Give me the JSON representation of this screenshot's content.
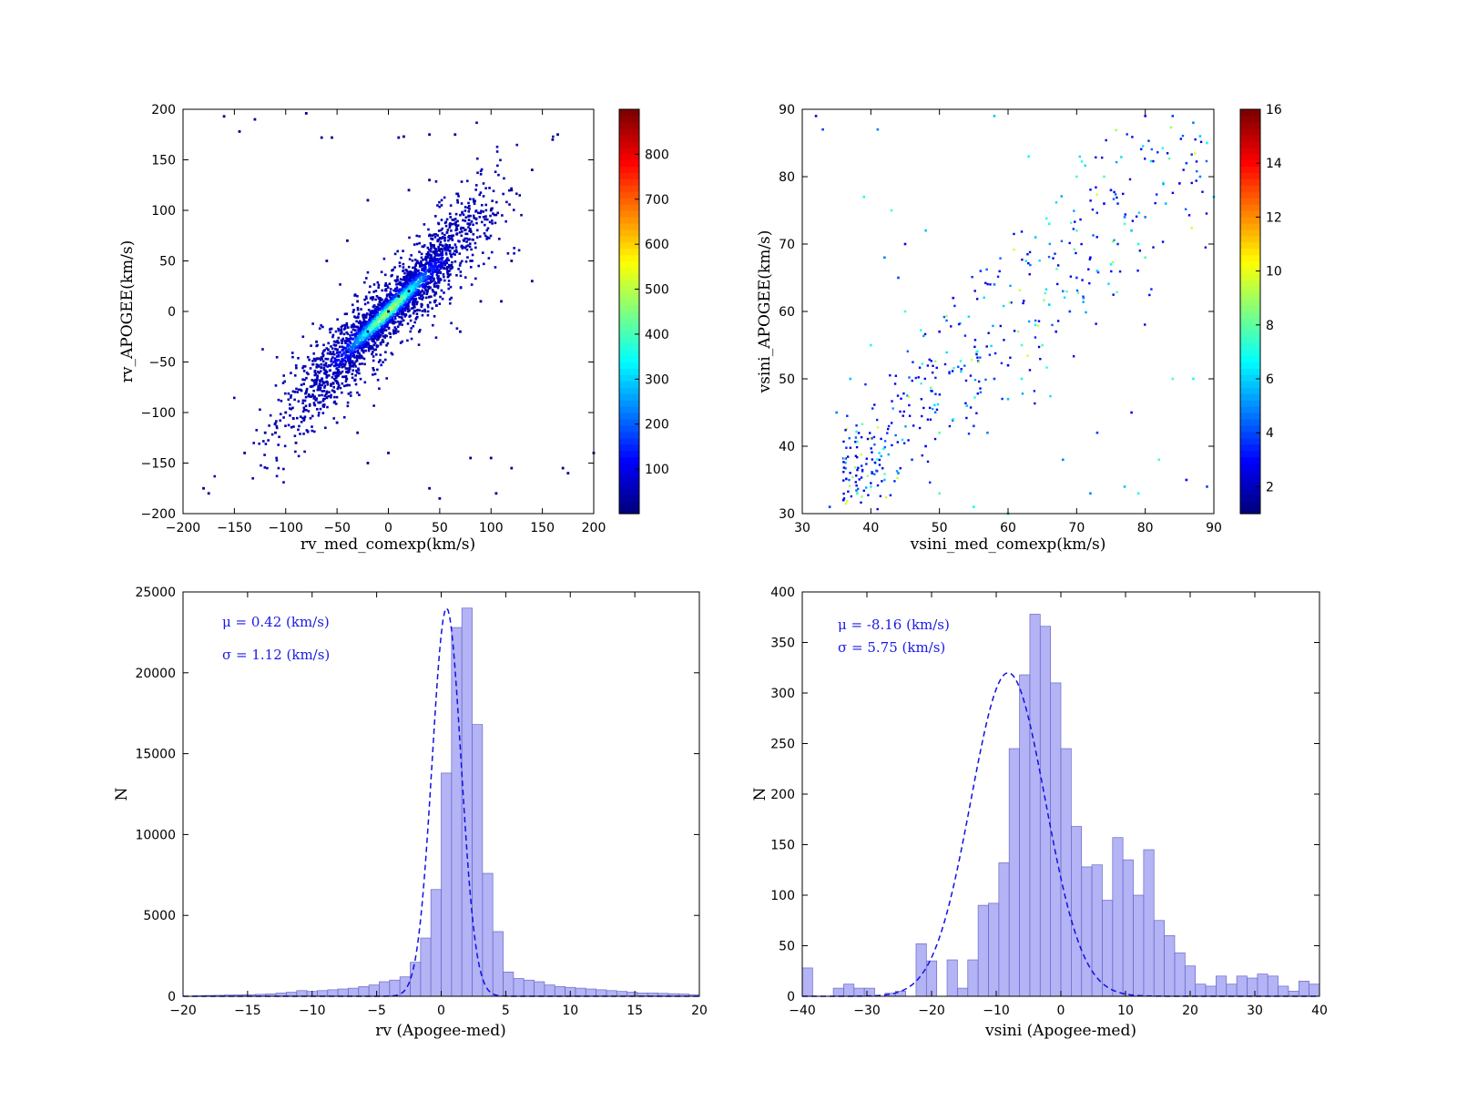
{
  "chart_data": [
    {
      "type": "scatter",
      "subtype": "density-scatter",
      "title": "",
      "xlabel": "rv_med_comexp(km/s)",
      "ylabel": "rv_APOGEE(km/s)",
      "xlim": [
        -200,
        200
      ],
      "ylim": [
        -200,
        200
      ],
      "xticks": [
        -200,
        -150,
        -100,
        -50,
        0,
        50,
        100,
        150,
        200
      ],
      "yticks": [
        -200,
        -150,
        -100,
        -50,
        0,
        50,
        100,
        150,
        200
      ],
      "xtick_labels": [
        "−200",
        "−150",
        "−100",
        "−50",
        "0",
        "50",
        "100",
        "150",
        "200"
      ],
      "ytick_labels": [
        "−200",
        "−150",
        "−100",
        "−50",
        "0",
        "50",
        "100",
        "150",
        "200"
      ],
      "colorbar": {
        "colormap": "jet",
        "range": [
          1,
          900
        ],
        "ticks": [
          100,
          200,
          300,
          400,
          500,
          600,
          700,
          800
        ]
      },
      "trend": "points concentrated along the 1:1 line y = x; density peaks near the origin (up to ~900 counts per cell)",
      "points": [
        [
          -160,
          193
        ],
        [
          -130,
          190
        ],
        [
          -145,
          178
        ],
        [
          -80,
          196
        ],
        [
          -65,
          172
        ],
        [
          -55,
          172
        ],
        [
          10,
          172
        ],
        [
          15,
          173
        ],
        [
          40,
          175
        ],
        [
          65,
          175
        ],
        [
          160,
          170
        ],
        [
          165,
          175
        ],
        [
          -140,
          -140
        ],
        [
          -120,
          -120
        ],
        [
          -100,
          -100
        ],
        [
          -80,
          -80
        ],
        [
          -60,
          -60
        ],
        [
          -40,
          -40
        ],
        [
          -20,
          -20
        ],
        [
          0,
          0
        ],
        [
          20,
          20
        ],
        [
          40,
          40
        ],
        [
          60,
          60
        ],
        [
          80,
          80
        ],
        [
          100,
          100
        ],
        [
          120,
          120
        ],
        [
          140,
          140
        ],
        [
          -60,
          50
        ],
        [
          -40,
          70
        ],
        [
          -20,
          110
        ],
        [
          20,
          120
        ],
        [
          40,
          130
        ],
        [
          -70,
          -30
        ],
        [
          -50,
          -110
        ],
        [
          -30,
          -120
        ],
        [
          0,
          -140
        ],
        [
          70,
          -20
        ],
        [
          90,
          10
        ],
        [
          110,
          10
        ],
        [
          120,
          50
        ],
        [
          140,
          30
        ],
        [
          80,
          -145
        ],
        [
          100,
          -145
        ],
        [
          120,
          -155
        ],
        [
          170,
          -155
        ],
        [
          175,
          -160
        ],
        [
          200,
          -140
        ],
        [
          -180,
          -175
        ],
        [
          -175,
          -180
        ],
        [
          -110,
          -120
        ],
        [
          -90,
          -130
        ],
        [
          -20,
          -150
        ],
        [
          40,
          -175
        ],
        [
          50,
          -185
        ],
        [
          105,
          -180
        ],
        [
          -5,
          -30
        ],
        [
          10,
          15
        ],
        [
          25,
          5
        ],
        [
          -15,
          -5
        ],
        [
          5,
          -10
        ],
        [
          -30,
          10
        ],
        [
          30,
          -20
        ],
        [
          50,
          60
        ],
        [
          -45,
          -55
        ]
      ]
    },
    {
      "type": "scatter",
      "subtype": "density-scatter",
      "title": "",
      "xlabel": "vsini_med_comexp(km/s)",
      "ylabel": "vsini_APOGEE(km/s)",
      "xlim": [
        30,
        90
      ],
      "ylim": [
        30,
        90
      ],
      "xticks": [
        30,
        40,
        50,
        60,
        70,
        80,
        90
      ],
      "yticks": [
        30,
        40,
        50,
        60,
        70,
        80,
        90
      ],
      "colorbar": {
        "colormap": "jet",
        "range": [
          1,
          16
        ],
        "ticks": [
          2,
          4,
          6,
          8,
          10,
          12,
          14,
          16
        ]
      },
      "trend": "sparse points scattered around the 1:1 line, densest at 35-55 km/s",
      "points": [
        [
          32,
          89
        ],
        [
          33,
          87
        ],
        [
          41,
          87
        ],
        [
          58,
          89
        ],
        [
          63,
          83
        ],
        [
          70,
          80
        ],
        [
          80,
          89
        ],
        [
          84,
          89
        ],
        [
          87,
          88
        ],
        [
          88,
          86
        ],
        [
          89,
          85
        ],
        [
          74,
          80
        ],
        [
          75,
          78
        ],
        [
          76,
          76
        ],
        [
          77,
          74
        ],
        [
          78,
          72
        ],
        [
          79,
          70
        ],
        [
          80,
          68
        ],
        [
          72,
          68
        ],
        [
          70,
          65
        ],
        [
          68,
          63
        ],
        [
          66,
          61
        ],
        [
          64,
          58
        ],
        [
          62,
          55
        ],
        [
          60,
          52
        ],
        [
          58,
          50
        ],
        [
          56,
          48
        ],
        [
          54,
          46
        ],
        [
          52,
          44
        ],
        [
          50,
          42
        ],
        [
          48,
          40
        ],
        [
          46,
          38
        ],
        [
          44,
          36
        ],
        [
          42,
          35
        ],
        [
          40,
          34
        ],
        [
          38,
          33
        ],
        [
          36,
          32
        ],
        [
          34,
          31
        ],
        [
          35,
          45
        ],
        [
          37,
          50
        ],
        [
          40,
          55
        ],
        [
          45,
          60
        ],
        [
          50,
          57
        ],
        [
          55,
          43
        ],
        [
          57,
          42
        ],
        [
          60,
          47
        ],
        [
          62,
          50
        ],
        [
          65,
          55
        ],
        [
          67,
          57
        ],
        [
          69,
          60
        ],
        [
          71,
          62
        ],
        [
          73,
          66
        ],
        [
          75,
          67
        ],
        [
          77,
          73
        ],
        [
          85,
          79
        ],
        [
          86,
          82
        ],
        [
          88,
          80
        ],
        [
          90,
          77
        ],
        [
          87,
          50
        ],
        [
          84,
          50
        ],
        [
          86,
          35
        ],
        [
          89,
          34
        ],
        [
          72,
          33
        ],
        [
          77,
          34
        ],
        [
          79,
          33
        ],
        [
          82,
          38
        ],
        [
          78,
          45
        ],
        [
          73,
          42
        ],
        [
          68,
          38
        ],
        [
          60,
          30
        ],
        [
          55,
          31
        ],
        [
          50,
          33
        ],
        [
          45,
          70
        ],
        [
          44,
          65
        ],
        [
          42,
          68
        ],
        [
          48,
          72
        ],
        [
          39,
          77
        ],
        [
          43,
          75
        ],
        [
          52,
          62
        ],
        [
          56,
          66
        ],
        [
          58,
          64
        ],
        [
          64,
          71
        ],
        [
          66,
          73
        ],
        [
          70,
          72
        ],
        [
          74,
          76
        ],
        [
          76,
          70
        ],
        [
          80,
          74
        ],
        [
          83,
          76
        ]
      ]
    },
    {
      "type": "bar",
      "subtype": "histogram",
      "title": "",
      "xlabel": "rv (Apogee-med)",
      "ylabel": "N",
      "xlim": [
        -20,
        20
      ],
      "ylim": [
        0,
        25000
      ],
      "xticks": [
        -20,
        -15,
        -10,
        -5,
        0,
        5,
        10,
        15,
        20
      ],
      "xtick_labels": [
        "−20",
        "−15",
        "−10",
        "−5",
        "0",
        "5",
        "10",
        "15",
        "20"
      ],
      "yticks": [
        0,
        5000,
        10000,
        15000,
        20000,
        25000
      ],
      "bin_start": -20,
      "bin_width": 0.8,
      "values": [
        0,
        30,
        50,
        60,
        80,
        90,
        100,
        120,
        150,
        200,
        250,
        350,
        300,
        350,
        400,
        450,
        500,
        600,
        700,
        900,
        1000,
        1200,
        2100,
        3600,
        6600,
        13800,
        22800,
        24000,
        16800,
        7600,
        4000,
        1500,
        1100,
        1000,
        900,
        700,
        600,
        550,
        500,
        450,
        400,
        350,
        300,
        250,
        200,
        200,
        180,
        160,
        140,
        100
      ],
      "fit": {
        "label": "gaussian fit",
        "mu": 0.42,
        "sigma": 1.12,
        "peak": 24000
      },
      "annotations": [
        "μ = 0.42 (km/s)",
        "σ = 1.12 (km/s)"
      ]
    },
    {
      "type": "bar",
      "subtype": "histogram",
      "title": "",
      "xlabel": "vsini (Apogee-med)",
      "ylabel": "N",
      "xlim": [
        -40,
        40
      ],
      "ylim": [
        0,
        400
      ],
      "xticks": [
        -40,
        -30,
        -20,
        -10,
        0,
        10,
        20,
        30,
        40
      ],
      "xtick_labels": [
        "−40",
        "−30",
        "−20",
        "−10",
        "0",
        "10",
        "20",
        "30",
        "40"
      ],
      "yticks": [
        0,
        50,
        100,
        150,
        200,
        250,
        300,
        350,
        400
      ],
      "bin_start": -40,
      "bin_width": 1.6,
      "values": [
        28,
        0,
        0,
        8,
        12,
        8,
        8,
        0,
        3,
        5,
        0,
        52,
        35,
        0,
        36,
        8,
        36,
        90,
        92,
        132,
        245,
        318,
        378,
        366,
        310,
        245,
        168,
        128,
        130,
        95,
        157,
        135,
        100,
        145,
        75,
        60,
        43,
        30,
        12,
        10,
        20,
        12,
        20,
        18,
        22,
        20,
        10,
        5,
        15,
        12
      ],
      "fit": {
        "label": "gaussian fit",
        "mu": -8.16,
        "sigma": 5.75,
        "peak": 320
      },
      "annotations": [
        "μ = -8.16 (km/s)",
        "σ = 5.75 (km/s)"
      ]
    }
  ]
}
